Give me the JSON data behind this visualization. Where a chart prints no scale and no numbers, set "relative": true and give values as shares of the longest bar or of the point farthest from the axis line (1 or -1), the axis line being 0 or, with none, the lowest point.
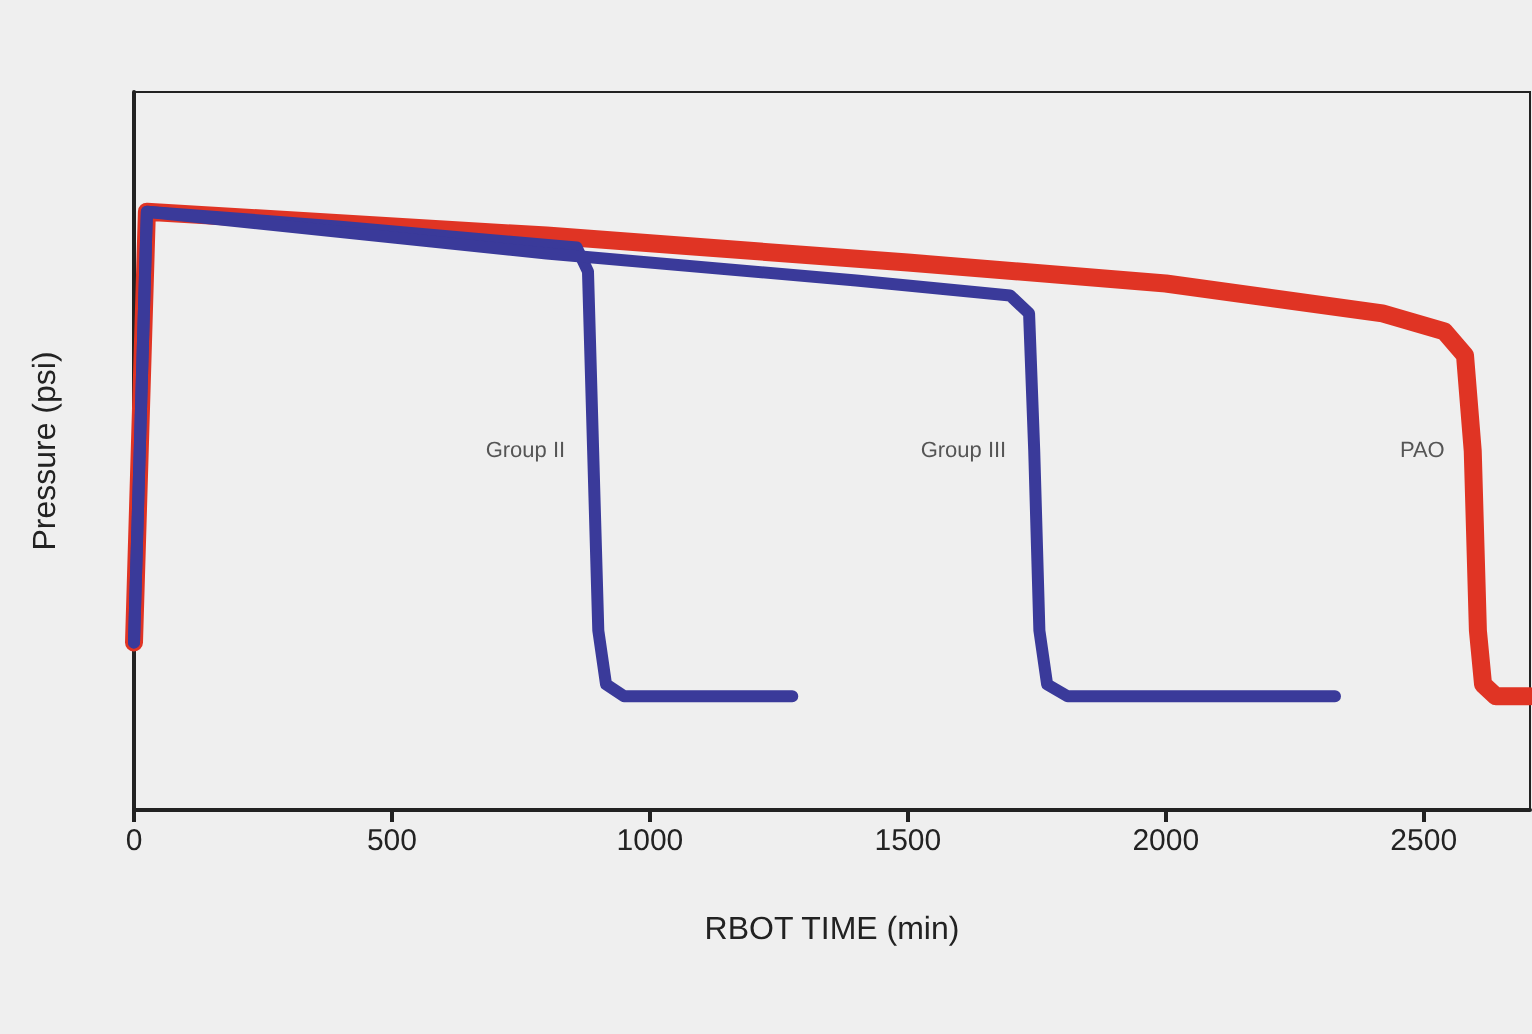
{
  "chart_data": {
    "type": "line",
    "xlabel": "RBOT TIME (min)",
    "ylabel": "Pressure (psi)",
    "relative": true,
    "xlim": [
      0,
      2706
    ],
    "xticks": [
      0,
      500,
      1000,
      1500,
      2000,
      2500
    ],
    "grid": false,
    "legend": false,
    "marker": "none",
    "line_style": "solid",
    "series": [
      {
        "name": "PAO",
        "color": "#e03424",
        "x": [
          0,
          25,
          800,
          1500,
          2000,
          2420,
          2540,
          2580,
          2595,
          2605,
          2615,
          2640,
          2706
        ],
        "values": [
          0.28,
          1,
          0.96,
          0.915,
          0.88,
          0.83,
          0.8,
          0.76,
          0.6,
          0.3,
          0.21,
          0.19,
          0.19
        ]
      },
      {
        "name": "Group II",
        "color": "#3a3a9a",
        "x": [
          0,
          25,
          400,
          858,
          880,
          890,
          900,
          915,
          950,
          1276
        ],
        "values": [
          0.28,
          1,
          0.975,
          0.94,
          0.9,
          0.6,
          0.3,
          0.21,
          0.19,
          0.19
        ]
      },
      {
        "name": "Group III",
        "color": "#3a3a9a",
        "x": [
          0,
          25,
          800,
          1400,
          1698,
          1735,
          1745,
          1755,
          1770,
          1810,
          2328
        ],
        "values": [
          0.28,
          1,
          0.93,
          0.885,
          0.86,
          0.83,
          0.6,
          0.3,
          0.21,
          0.19,
          0.19
        ]
      }
    ]
  }
}
